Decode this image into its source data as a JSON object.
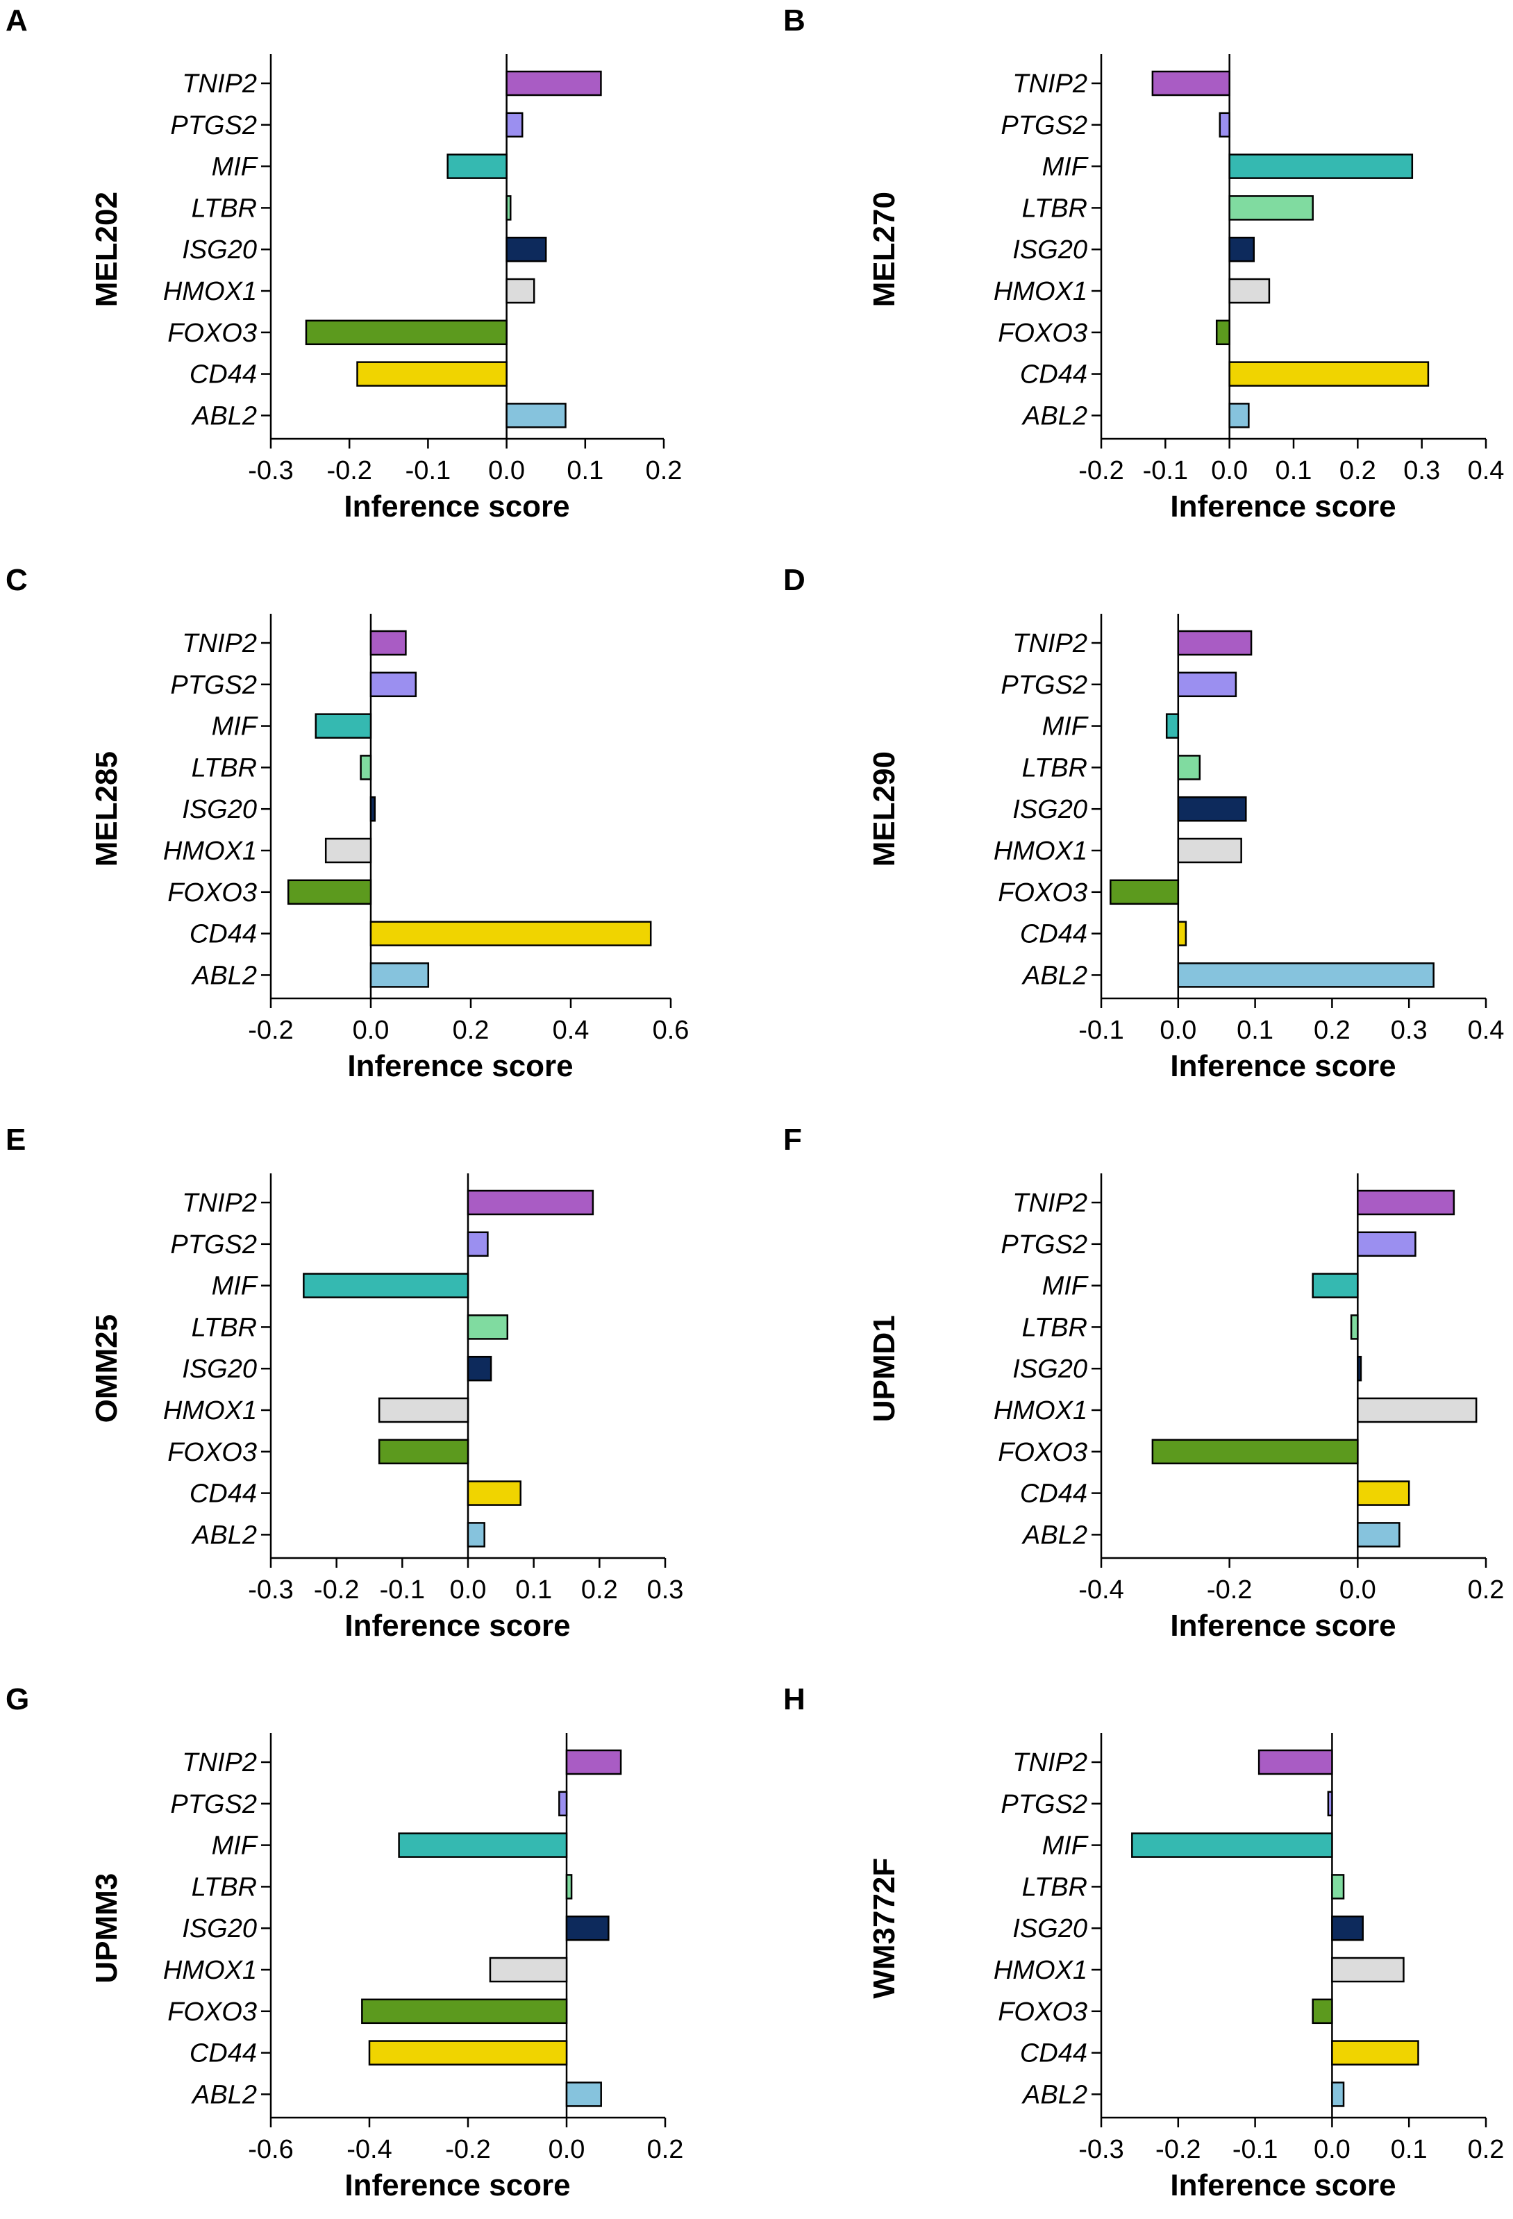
{
  "figure": {
    "genes": [
      "TNIP2",
      "PTGS2",
      "MIF",
      "LTBR",
      "ISG20",
      "HMOX1",
      "FOXO3",
      "CD44",
      "ABL2"
    ],
    "gene_colors": {
      "TNIP2": "#a95cc4",
      "PTGS2": "#9b8ff0",
      "MIF": "#35b9b1",
      "LTBR": "#80dba0",
      "ISG20": "#0d2a5c",
      "HMOX1": "#dcdcdc",
      "FOXO3": "#5c9a1e",
      "CD44": "#f0d400",
      "ABL2": "#86c3dd"
    }
  },
  "chart_data": [
    {
      "type": "bar",
      "orientation": "horizontal",
      "panel": "A",
      "title": "MEL202",
      "xlabel": "Inference score",
      "ylabel": "MEL202",
      "categories": [
        "TNIP2",
        "PTGS2",
        "MIF",
        "LTBR",
        "ISG20",
        "HMOX1",
        "FOXO3",
        "CD44",
        "ABL2"
      ],
      "values": [
        0.12,
        0.02,
        -0.075,
        0.005,
        0.05,
        0.035,
        -0.255,
        -0.19,
        0.075
      ],
      "xlim": [
        -0.3,
        0.2
      ],
      "xticks": [
        -0.3,
        -0.2,
        -0.1,
        0.0,
        0.1,
        0.2
      ],
      "xtick_labels": [
        "-0.3",
        "-0.2",
        "-0.1",
        "0.0",
        "0.1",
        "0.2"
      ]
    },
    {
      "type": "bar",
      "orientation": "horizontal",
      "panel": "B",
      "title": "MEL270",
      "xlabel": "Inference score",
      "ylabel": "MEL270",
      "categories": [
        "TNIP2",
        "PTGS2",
        "MIF",
        "LTBR",
        "ISG20",
        "HMOX1",
        "FOXO3",
        "CD44",
        "ABL2"
      ],
      "values": [
        -0.12,
        -0.015,
        0.285,
        0.13,
        0.038,
        0.062,
        -0.02,
        0.31,
        0.03
      ],
      "xlim": [
        -0.2,
        0.4
      ],
      "xticks": [
        -0.2,
        -0.1,
        0.0,
        0.1,
        0.2,
        0.3,
        0.4
      ],
      "xtick_labels": [
        "-0.2",
        "-0.1",
        "0.0",
        "0.1",
        "0.2",
        "0.3",
        "0.4"
      ]
    },
    {
      "type": "bar",
      "orientation": "horizontal",
      "panel": "C",
      "title": "MEL285",
      "xlabel": "Inference score",
      "ylabel": "MEL285",
      "categories": [
        "TNIP2",
        "PTGS2",
        "MIF",
        "LTBR",
        "ISG20",
        "HMOX1",
        "FOXO3",
        "CD44",
        "ABL2"
      ],
      "values": [
        0.07,
        0.09,
        -0.11,
        -0.02,
        0.008,
        -0.09,
        -0.165,
        0.56,
        0.115
      ],
      "xlim": [
        -0.2,
        0.6
      ],
      "xticks": [
        -0.2,
        0.0,
        0.2,
        0.4,
        0.6
      ],
      "xtick_labels": [
        "-0.2",
        "0.0",
        "0.2",
        "0.4",
        "0.6"
      ]
    },
    {
      "type": "bar",
      "orientation": "horizontal",
      "panel": "D",
      "title": "MEL290",
      "xlabel": "Inference score",
      "ylabel": "MEL290",
      "categories": [
        "TNIP2",
        "PTGS2",
        "MIF",
        "LTBR",
        "ISG20",
        "HMOX1",
        "FOXO3",
        "CD44",
        "ABL2"
      ],
      "values": [
        0.095,
        0.075,
        -0.015,
        0.028,
        0.088,
        0.082,
        -0.088,
        0.01,
        0.332
      ],
      "xlim": [
        -0.1,
        0.4
      ],
      "xticks": [
        -0.1,
        0.0,
        0.1,
        0.2,
        0.3,
        0.4
      ],
      "xtick_labels": [
        "-0.1",
        "0.0",
        "0.1",
        "0.2",
        "0.3",
        "0.4"
      ]
    },
    {
      "type": "bar",
      "orientation": "horizontal",
      "panel": "E",
      "title": "OMM25",
      "xlabel": "Inference score",
      "ylabel": "OMM25",
      "categories": [
        "TNIP2",
        "PTGS2",
        "MIF",
        "LTBR",
        "ISG20",
        "HMOX1",
        "FOXO3",
        "CD44",
        "ABL2"
      ],
      "values": [
        0.19,
        0.03,
        -0.25,
        0.06,
        0.035,
        -0.135,
        -0.135,
        0.08,
        0.025
      ],
      "xlim": [
        -0.3,
        0.3
      ],
      "xticks": [
        -0.3,
        -0.2,
        -0.1,
        0.0,
        0.1,
        0.2,
        0.3
      ],
      "xtick_labels": [
        "-0.3",
        "-0.2",
        "-0.1",
        "0.0",
        "0.1",
        "0.2",
        "0.3"
      ]
    },
    {
      "type": "bar",
      "orientation": "horizontal",
      "panel": "F",
      "title": "UPMD1",
      "xlabel": "Inference score",
      "ylabel": "UPMD1",
      "categories": [
        "TNIP2",
        "PTGS2",
        "MIF",
        "LTBR",
        "ISG20",
        "HMOX1",
        "FOXO3",
        "CD44",
        "ABL2"
      ],
      "values": [
        0.15,
        0.09,
        -0.07,
        -0.01,
        0.005,
        0.185,
        -0.32,
        0.08,
        0.065
      ],
      "xlim": [
        -0.4,
        0.2
      ],
      "xticks": [
        -0.4,
        -0.2,
        0.0,
        0.2
      ],
      "xtick_labels": [
        "-0.4",
        "-0.2",
        "0.0",
        "0.2"
      ]
    },
    {
      "type": "bar",
      "orientation": "horizontal",
      "panel": "G",
      "title": "UPMM3",
      "xlabel": "Inference score",
      "ylabel": "UPMM3",
      "categories": [
        "TNIP2",
        "PTGS2",
        "MIF",
        "LTBR",
        "ISG20",
        "HMOX1",
        "FOXO3",
        "CD44",
        "ABL2"
      ],
      "values": [
        0.11,
        -0.015,
        -0.34,
        0.01,
        0.085,
        -0.155,
        -0.415,
        -0.4,
        0.07
      ],
      "xlim": [
        -0.6,
        0.2
      ],
      "xticks": [
        -0.6,
        -0.4,
        -0.2,
        0.0,
        0.2
      ],
      "xtick_labels": [
        "-0.6",
        "-0.4",
        "-0.2",
        "0.0",
        "0.2"
      ]
    },
    {
      "type": "bar",
      "orientation": "horizontal",
      "panel": "H",
      "title": "WM3772F",
      "xlabel": "Inference score",
      "ylabel": "WM3772F",
      "categories": [
        "TNIP2",
        "PTGS2",
        "MIF",
        "LTBR",
        "ISG20",
        "HMOX1",
        "FOXO3",
        "CD44",
        "ABL2"
      ],
      "values": [
        -0.095,
        -0.005,
        -0.26,
        0.015,
        0.04,
        0.093,
        -0.025,
        0.112,
        0.015
      ],
      "xlim": [
        -0.3,
        0.2
      ],
      "xticks": [
        -0.3,
        -0.2,
        -0.1,
        0.0,
        0.1,
        0.2
      ],
      "xtick_labels": [
        "-0.3",
        "-0.2",
        "-0.1",
        "0.0",
        "0.1",
        "0.2"
      ]
    }
  ]
}
